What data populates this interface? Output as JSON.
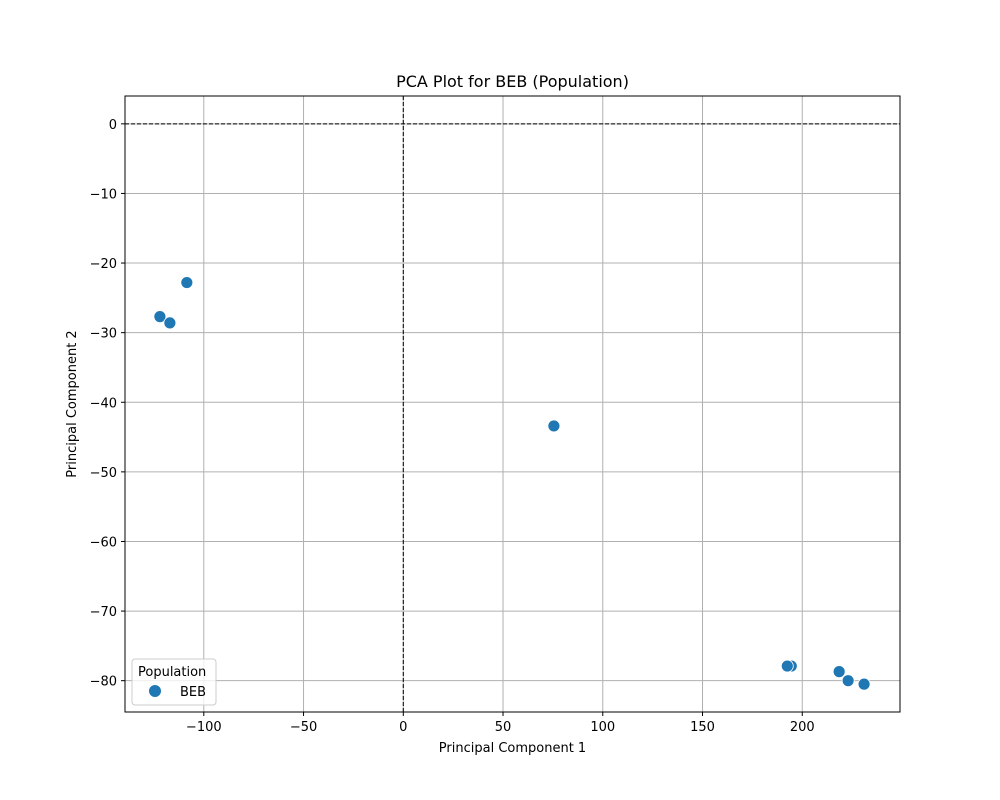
{
  "chart_data": {
    "type": "scatter",
    "title": "PCA Plot for BEB (Population)",
    "xlabel": "Principal Component 1",
    "ylabel": "Principal Component 2",
    "xlim": [
      -139.5,
      249
    ],
    "ylim": [
      -84.5,
      4
    ],
    "xticks": [
      -100,
      -50,
      0,
      50,
      100,
      150,
      200
    ],
    "xtick_labels": [
      "−100",
      "−50",
      "0",
      "50",
      "100",
      "150",
      "200"
    ],
    "yticks": [
      0,
      -10,
      -20,
      -30,
      -40,
      -50,
      -60,
      -70,
      -80
    ],
    "ytick_labels": [
      "0",
      "−10",
      "−20",
      "−30",
      "−40",
      "−50",
      "−60",
      "−70",
      "−80"
    ],
    "grid": true,
    "reference_lines": {
      "x": 0,
      "y": 0,
      "style": "dashed",
      "color": "#000000"
    },
    "legend": {
      "title": "Population",
      "placement": "lower-left"
    },
    "series": [
      {
        "name": "BEB",
        "color": "#1f77b4",
        "points": [
          {
            "x": -108.5,
            "y": -22.8
          },
          {
            "x": -122,
            "y": -27.7
          },
          {
            "x": -117,
            "y": -28.6
          },
          {
            "x": 75.5,
            "y": -43.4
          },
          {
            "x": 194.5,
            "y": -77.9
          },
          {
            "x": 192.5,
            "y": -77.9
          },
          {
            "x": 218.5,
            "y": -78.7
          },
          {
            "x": 223,
            "y": -80
          },
          {
            "x": 231,
            "y": -80.5
          }
        ]
      }
    ]
  }
}
